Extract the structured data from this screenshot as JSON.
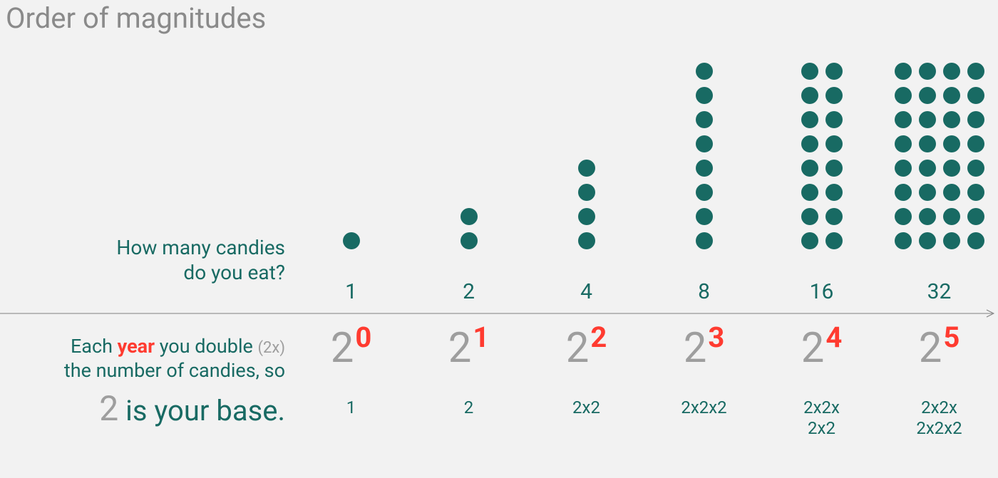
{
  "colors": {
    "background": "#f2f2f2",
    "title_gray": "#8a8a8a",
    "teal": "#186a63",
    "dot": "#186a63",
    "gray": "#9e9e9e",
    "red": "#ff3b30",
    "axis": "#808080"
  },
  "title": "Order of magnitudes",
  "question_line1": "How many candies",
  "question_line2": "do you eat?",
  "explain": {
    "line1_pre": "Each ",
    "line1_year": "year",
    "line1_post": " you double ",
    "line1_2x": "(2x)",
    "line2": "the number of candies, so",
    "base_two": "2",
    "base_rest": " is your base."
  },
  "chart": {
    "dot_diameter": 24,
    "dot_gap": 10,
    "columns": [
      {
        "value": 1,
        "rows": 1,
        "cols": 1,
        "exp": "0",
        "expansion": "1"
      },
      {
        "value": 2,
        "rows": 2,
        "cols": 1,
        "exp": "1",
        "expansion": "2"
      },
      {
        "value": 4,
        "rows": 4,
        "cols": 1,
        "exp": "2",
        "expansion": "2x2"
      },
      {
        "value": 8,
        "rows": 8,
        "cols": 1,
        "exp": "3",
        "expansion": "2x2x2"
      },
      {
        "value": 16,
        "rows": 8,
        "cols": 2,
        "exp": "4",
        "expansion": "2x2x\n2x2"
      },
      {
        "value": 32,
        "rows": 8,
        "cols": 4,
        "exp": "5",
        "expansion": "2x2x\n2x2x2"
      }
    ],
    "base_label": "2"
  },
  "fontsizes": {
    "title": 40,
    "question": 28,
    "count": 30,
    "explain": 27,
    "explain_small": 22,
    "baseline": 40,
    "baseline_two": 48,
    "power_base": 58,
    "power_exp": 40,
    "expansion": 24
  }
}
